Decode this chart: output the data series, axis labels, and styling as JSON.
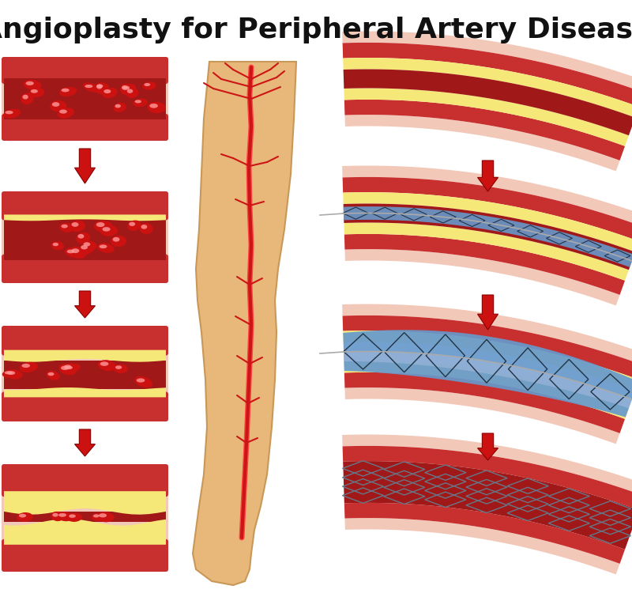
{
  "title": "Angioplasty for Peripheral Artery Disease",
  "title_fontsize": 26,
  "title_fontweight": "bold",
  "title_color": "#111111",
  "bg_color": "#ffffff",
  "arrow_color": "#cc1111",
  "wall_outer_color": "#f2c8b8",
  "wall_mid_color": "#e08070",
  "wall_inner_color": "#c83030",
  "lumen_color": "#a01818",
  "lumen_color2": "#882020",
  "plaque_color": "#f5e878",
  "plaque_edge_color": "#c8b840",
  "cell_color": "#cc1111",
  "cell_highlight": "#ff7777",
  "stent_blue": "#6699cc",
  "stent_blue2": "#aabbdd",
  "stent_wire": "#223344",
  "stent_wire_expanded": "#667788",
  "catheter_color": "#aaaaaa",
  "leg_skin": "#e8b87a",
  "leg_skin_edge": "#c89858",
  "leg_artery": "#cc1515",
  "leg_artery_edge": "#991010"
}
